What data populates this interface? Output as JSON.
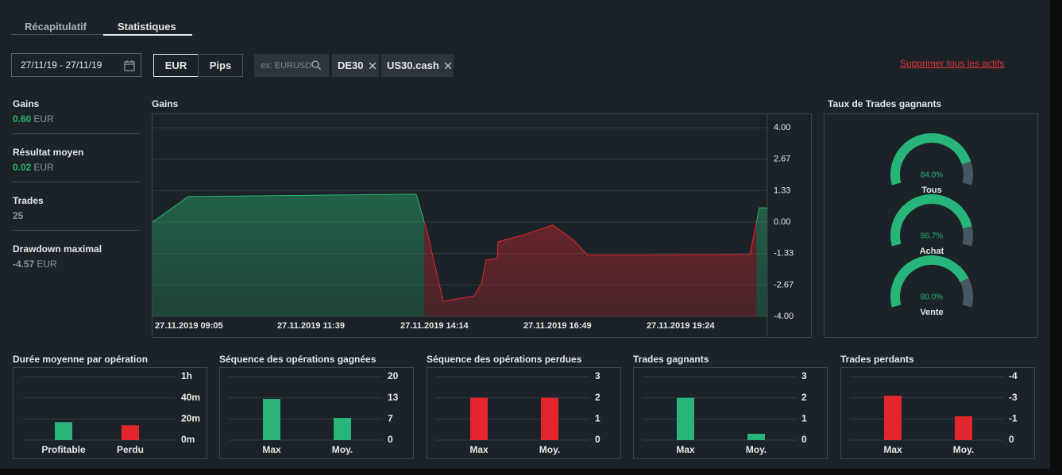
{
  "tabs": [
    "Récapitulatif",
    "Statistiques"
  ],
  "filters": {
    "date_range": "27/11/19 - 27/11/19",
    "units": [
      "EUR",
      "Pips"
    ],
    "search_placeholder": "ex: EURUSD",
    "assets": [
      "DE30",
      "US30.cash"
    ],
    "clear_link": "Supprimer tous les actifs"
  },
  "stats": [
    {
      "label": "Gains",
      "value": "0.60",
      "unit": "EUR"
    },
    {
      "label": "Résultat moyen",
      "value": "0.02",
      "unit": "EUR"
    },
    {
      "label": "Trades",
      "value": "25"
    },
    {
      "label": "Drawdown maximal",
      "value": "-4.57",
      "unit": "EUR"
    }
  ],
  "chart_data": [
    {
      "type": "area",
      "title": "Gains",
      "x": [
        "27.11.2019 09:05",
        "27.11.2019 09:50",
        "27.11.2019 14:37",
        "27.11.2019 14:51",
        "27.11.2019 15:11",
        "27.11.2019 15:50",
        "27.11.2019 15:59",
        "27.11.2019 16:05",
        "27.11.2019 16:19",
        "27.11.2019 16:20",
        "27.11.2019 16:53",
        "27.11.2019 17:29",
        "27.11.2019 17:55",
        "27.11.2019 18:13",
        "27.11.2019 21:37",
        "27.11.2019 21:49",
        "27.11.2019 21:59"
      ],
      "values": [
        0,
        1.08,
        1.18,
        -0.44,
        -3.36,
        -3.13,
        -2.62,
        -1.61,
        -1.55,
        -0.84,
        -0.54,
        -0.13,
        -0.77,
        -1.41,
        -1.38,
        0.6,
        0.6
      ],
      "xlim": [
        "27.11.2019 09:05",
        "27.11.2019 21:59"
      ],
      "xticks": [
        "27.11.2019 09:05",
        "27.11.2019 11:39",
        "27.11.2019 14:14",
        "27.11.2019 16:49",
        "27.11.2019 19:24"
      ],
      "ylim": [
        -4,
        4
      ],
      "yticks": [
        {
          "value": 4,
          "label": "4.00"
        },
        2.67,
        1.33,
        {
          "value": 0,
          "label": "0.00"
        },
        -1.33,
        -2.67,
        {
          "value": -4,
          "label": "-4.00"
        }
      ],
      "grid": true,
      "color_positive": "#2bb673",
      "color_negative": "#e3262d"
    },
    {
      "type": "gauge",
      "title": "Taux de Trades gagnants",
      "categories": [
        "Tous",
        "Achat",
        "Vente"
      ],
      "values": [
        84.0,
        86.7,
        80.0
      ],
      "value_labels": [
        "84.0%",
        "86.7%",
        "80.0%"
      ],
      "ylim": [
        0,
        100
      ],
      "color": "#27b57a",
      "track_color": "#4a5761"
    },
    {
      "type": "bar",
      "title": "Durée moyenne par opération",
      "categories": [
        "Profitable",
        "Perdu"
      ],
      "values": [
        17,
        14
      ],
      "colors": [
        "#27b57a",
        "#e3262d"
      ],
      "ylim": [
        0,
        60
      ],
      "yticks": [
        {
          "value": 0,
          "label": "0m"
        },
        {
          "value": 20,
          "label": "20m"
        },
        {
          "value": 40,
          "label": "40m"
        },
        {
          "value": 60,
          "label": "1h"
        }
      ],
      "grid": true
    },
    {
      "type": "bar",
      "title": "Séquence des opérations gagnées",
      "categories": [
        "Max",
        "Moy."
      ],
      "values": [
        13,
        7
      ],
      "colors": [
        "#27b57a",
        "#27b57a"
      ],
      "ylim": [
        0,
        20
      ],
      "yticks": [
        0,
        {
          "value": 6.67,
          "label": "7"
        },
        {
          "value": 13.33,
          "label": "13"
        },
        20
      ],
      "grid": true
    },
    {
      "type": "bar",
      "title": "Séquence des opérations perdues",
      "categories": [
        "Max",
        "Moy."
      ],
      "values": [
        2,
        2
      ],
      "colors": [
        "#e3262d",
        "#e3262d"
      ],
      "ylim": [
        0,
        3
      ],
      "yticks": [
        0,
        1,
        2,
        3
      ],
      "grid": true
    },
    {
      "type": "bar",
      "title": "Trades gagnants",
      "categories": [
        "Max",
        "Moy."
      ],
      "values": [
        2,
        0.3
      ],
      "colors": [
        "#27b57a",
        "#27b57a"
      ],
      "ylim": [
        0,
        3
      ],
      "yticks": [
        0,
        1,
        2,
        3
      ],
      "grid": true
    },
    {
      "type": "bar",
      "title": "Trades perdants",
      "categories": [
        "Max",
        "Moy."
      ],
      "values": [
        -2.8,
        -1.5
      ],
      "colors": [
        "#e3262d",
        "#e3262d"
      ],
      "ylim": [
        0,
        -4
      ],
      "yticks": [
        0,
        {
          "value": -1.33,
          "label": "-1"
        },
        {
          "value": -2.67,
          "label": "-3"
        },
        {
          "value": -4,
          "label": "-4"
        }
      ],
      "grid": true
    }
  ]
}
